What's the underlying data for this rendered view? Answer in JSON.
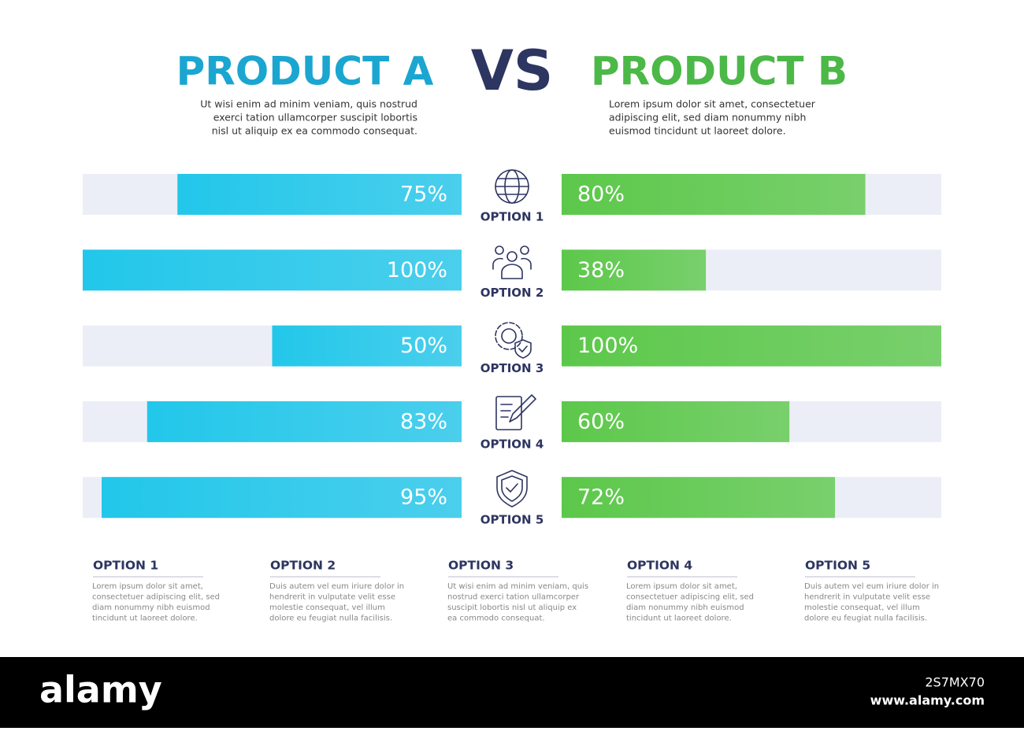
{
  "chart_data": {
    "type": "bar",
    "separator": "VS",
    "categories": [
      "OPTION 1",
      "OPTION 2",
      "OPTION 3",
      "OPTION 4",
      "OPTION 5"
    ],
    "xlim": [
      0,
      100
    ],
    "series": [
      {
        "name": "PRODUCT A",
        "color": "#22c7ea",
        "description": [
          "Ut wisi enim ad minim veniam, quis nostrud",
          "exerci tation ullamcorper suscipit lobortis",
          "nisl ut aliquip ex ea commodo consequat."
        ],
        "values": [
          75,
          100,
          50,
          83,
          95
        ],
        "value_labels": [
          "75%",
          "100%",
          "50%",
          "83%",
          "95%"
        ]
      },
      {
        "name": "PRODUCT B",
        "color": "#5cc84a",
        "description": [
          "Lorem ipsum dolor sit amet, consectetuer",
          "adipiscing elit, sed diam nonummy nibh",
          "euismod tincidunt ut laoreet dolore."
        ],
        "values": [
          80,
          38,
          100,
          60,
          72
        ],
        "value_labels": [
          "80%",
          "38%",
          "100%",
          "60%",
          "72%"
        ]
      }
    ]
  },
  "options": [
    {
      "title": "OPTION 1",
      "text": [
        "Lorem ipsum dolor sit amet,",
        "consectetuer adipiscing elit, sed",
        "diam nonummy nibh euismod",
        "tincidunt ut laoreet dolore."
      ]
    },
    {
      "title": "OPTION 2",
      "text": [
        "Duis autem vel eum iriure dolor in",
        "hendrerit in vulputate velit esse",
        "molestie consequat, vel illum",
        "dolore eu feugiat nulla facilisis."
      ]
    },
    {
      "title": "OPTION 3",
      "text": [
        "Ut wisi enim ad minim veniam, quis",
        "nostrud exerci tation ullamcorper",
        "suscipit lobortis nisl ut aliquip ex",
        "ea commodo consequat."
      ]
    },
    {
      "title": "OPTION 4",
      "text": [
        "Lorem ipsum dolor sit amet,",
        "consectetuer adipiscing elit, sed",
        "diam nonummy nibh euismod",
        "tincidunt ut laoreet dolore."
      ]
    },
    {
      "title": "OPTION 5",
      "text": [
        "Duis autem vel eum iriure dolor in",
        "hendrerit in vulputate velit esse",
        "molestie consequat, vel illum",
        "dolore eu feugiat nulla facilisis."
      ]
    }
  ],
  "footer": {
    "brand": "alamy",
    "id": "2S7MX70",
    "url": "www.alamy.com"
  }
}
